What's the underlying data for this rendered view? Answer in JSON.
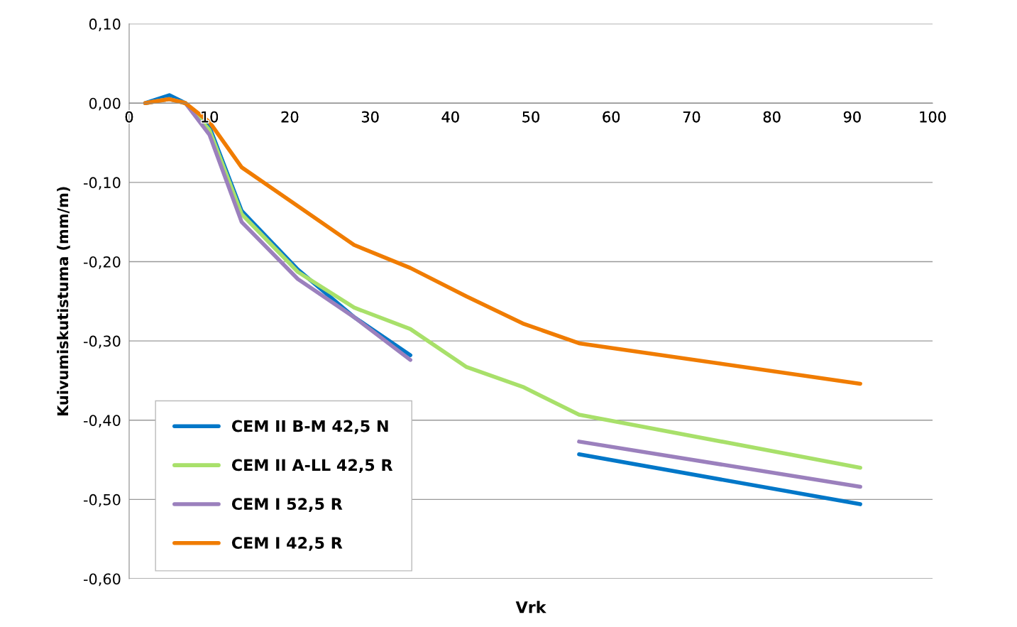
{
  "chart_data": {
    "type": "line",
    "xlabel": "Vrk",
    "ylabel": "Kuivumiskutistuma (mm/m)",
    "x": [
      2,
      5,
      7,
      10,
      14,
      21,
      28,
      35,
      42,
      49,
      56,
      91
    ],
    "series": [
      {
        "name": "CEM II B-M 42,5 N",
        "color": "#0077c8",
        "values": [
          0,
          0.01,
          0,
          -0.03,
          -0.136,
          -0.21,
          -0.27,
          -0.318,
          null,
          null,
          -0.443,
          -0.506
        ]
      },
      {
        "name": "CEM II A-LL 42,5 R",
        "color": "#a8e06a",
        "values": [
          0,
          0.005,
          0,
          -0.034,
          -0.14,
          -0.213,
          -0.258,
          -0.285,
          -0.333,
          -0.358,
          -0.393,
          -0.46
        ]
      },
      {
        "name": "CEM I 52,5 R",
        "color": "#9b80bd",
        "values": [
          0,
          0.005,
          0,
          -0.04,
          -0.15,
          -0.222,
          -0.27,
          -0.324,
          null,
          null,
          -0.427,
          -0.484
        ]
      },
      {
        "name": "CEM I 42,5 R",
        "color": "#f07c00",
        "values": [
          0,
          0.005,
          0,
          -0.024,
          -0.081,
          -0.13,
          -0.179,
          -0.208,
          -0.244,
          -0.278,
          -0.303,
          -0.354
        ]
      }
    ],
    "xlim": [
      0,
      100
    ],
    "xticks": [
      0,
      10,
      20,
      30,
      40,
      50,
      60,
      70,
      80,
      90,
      100
    ],
    "ylim": [
      -0.6,
      0.1
    ],
    "yticks": [
      {
        "value": -0.6,
        "label": "-0,60"
      },
      {
        "value": -0.5,
        "label": "-0,50"
      },
      {
        "value": -0.4,
        "label": "-0,40"
      },
      {
        "value": -0.3,
        "label": "-0,30"
      },
      {
        "value": -0.2,
        "label": "-0,20"
      },
      {
        "value": -0.1,
        "label": "-0,10"
      },
      {
        "value": 0,
        "label": "0,00"
      },
      {
        "value": 0.1,
        "label": "0,10"
      }
    ],
    "grid": "y",
    "legend": "bottom left",
    "marker": "none",
    "line_style": "solid"
  }
}
